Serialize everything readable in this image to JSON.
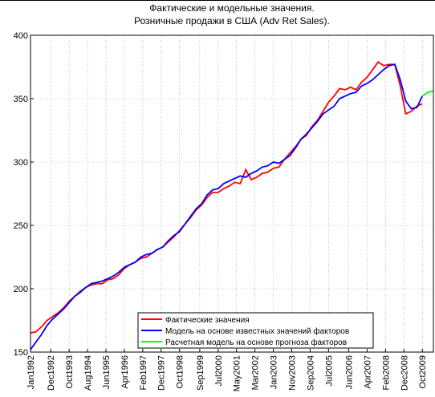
{
  "chart_data": {
    "type": "line",
    "title": [
      "Фактические и модельные значения.",
      "Розничные продажи в США (Adv Ret Sales)."
    ],
    "x": [
      "1992-01",
      "1992-04",
      "1992-07",
      "1992-10",
      "1993-01",
      "1993-04",
      "1993-07",
      "1993-10",
      "1994-01",
      "1994-04",
      "1994-07",
      "1994-10",
      "1995-01",
      "1995-04",
      "1995-07",
      "1995-10",
      "1996-01",
      "1996-04",
      "1996-07",
      "1996-10",
      "1997-01",
      "1997-04",
      "1997-07",
      "1997-10",
      "1998-01",
      "1998-04",
      "1998-07",
      "1998-10",
      "1999-01",
      "1999-04",
      "1999-07",
      "1999-10",
      "2000-01",
      "2000-04",
      "2000-07",
      "2000-10",
      "2001-01",
      "2001-04",
      "2001-07",
      "2001-10",
      "2002-01",
      "2002-04",
      "2002-07",
      "2002-10",
      "2003-01",
      "2003-04",
      "2003-07",
      "2003-10",
      "2004-01",
      "2004-04",
      "2004-07",
      "2004-10",
      "2005-01",
      "2005-04",
      "2005-07",
      "2005-10",
      "2006-01",
      "2006-04",
      "2006-07",
      "2006-10",
      "2007-01",
      "2007-04",
      "2007-07",
      "2007-10",
      "2008-01",
      "2008-04",
      "2008-07",
      "2008-10",
      "2009-01",
      "2009-04",
      "2009-07",
      "2009-10",
      "2010-01",
      "2010-04"
    ],
    "series": [
      {
        "name": "Фактические значения",
        "color": "#ff0000",
        "values": [
          165,
          166,
          170,
          175,
          178,
          181,
          185,
          190,
          194,
          198,
          201,
          203,
          204,
          204,
          207,
          208,
          211,
          216,
          219,
          221,
          224,
          225,
          228,
          231,
          233,
          237,
          241,
          246,
          251,
          256,
          262,
          266,
          272,
          276,
          276,
          279,
          281,
          284,
          283,
          294,
          286,
          288,
          291,
          292,
          295,
          296,
          302,
          307,
          312,
          318,
          321,
          328,
          333,
          340,
          347,
          352,
          358,
          357,
          359,
          357,
          363,
          367,
          373,
          379,
          376,
          377,
          377,
          360,
          338,
          340,
          344,
          346,
          null,
          null
        ]
      },
      {
        "name": "Модель на основе известных значений факторов",
        "color": "#0000ff",
        "values": [
          152,
          158,
          164,
          171,
          176,
          180,
          184,
          189,
          194,
          197,
          201,
          204,
          205,
          206,
          208,
          210,
          213,
          217,
          219,
          221,
          225,
          227,
          228,
          231,
          233,
          238,
          242,
          245,
          251,
          257,
          263,
          267,
          274,
          278,
          279,
          283,
          285,
          287,
          289,
          288,
          291,
          293,
          296,
          297,
          300,
          299,
          302,
          305,
          311,
          318,
          322,
          327,
          332,
          338,
          341,
          344,
          350,
          352,
          354,
          355,
          360,
          362,
          365,
          369,
          373,
          376,
          377,
          365,
          348,
          342,
          343,
          352,
          null,
          null
        ]
      },
      {
        "name": "Расчетная модель на основе прогноза факторов",
        "color": "#00ff00",
        "values": [
          null,
          null,
          null,
          null,
          null,
          null,
          null,
          null,
          null,
          null,
          null,
          null,
          null,
          null,
          null,
          null,
          null,
          null,
          null,
          null,
          null,
          null,
          null,
          null,
          null,
          null,
          null,
          null,
          null,
          null,
          null,
          null,
          null,
          null,
          null,
          null,
          null,
          null,
          null,
          null,
          null,
          null,
          null,
          null,
          null,
          null,
          null,
          null,
          null,
          null,
          null,
          null,
          null,
          null,
          null,
          null,
          null,
          null,
          null,
          null,
          null,
          null,
          null,
          null,
          null,
          null,
          null,
          null,
          null,
          null,
          null,
          352,
          355,
          356
        ]
      }
    ],
    "xlim": [
      "1992-01",
      "2010-04"
    ],
    "xticks": [
      {
        "value": "1992-01",
        "label": "Jan1992"
      },
      {
        "value": "1992-12",
        "label": "Dec1992"
      },
      {
        "value": "1993-10",
        "label": "Oct1993"
      },
      {
        "value": "1994-08",
        "label": "Aug1994"
      },
      {
        "value": "1995-06",
        "label": "Jun1995"
      },
      {
        "value": "1996-04",
        "label": "Apr1996"
      },
      {
        "value": "1997-02",
        "label": "Feb1997"
      },
      {
        "value": "1997-12",
        "label": "Dec1997"
      },
      {
        "value": "1998-10",
        "label": "Oct1998"
      },
      {
        "value": "1999-09",
        "label": "Sep1999"
      },
      {
        "value": "2000-07",
        "label": "Jul2000"
      },
      {
        "value": "2001-05",
        "label": "May2001"
      },
      {
        "value": "2002-03",
        "label": "Mar2002"
      },
      {
        "value": "2003-01",
        "label": "Jan2003"
      },
      {
        "value": "2003-11",
        "label": "Nov2003"
      },
      {
        "value": "2004-09",
        "label": "Sep2004"
      },
      {
        "value": "2005-07",
        "label": "Jul2005"
      },
      {
        "value": "2006-06",
        "label": "Jun2006"
      },
      {
        "value": "2007-04",
        "label": "Apr2007"
      },
      {
        "value": "2008-02",
        "label": "Feb2008"
      },
      {
        "value": "2008-12",
        "label": "Dec2008"
      },
      {
        "value": "2009-10",
        "label": "Oct2009"
      }
    ],
    "ylim": [
      150,
      400
    ],
    "yticks": [
      150,
      200,
      250,
      300,
      350,
      400
    ],
    "grid": true,
    "legend": "bottom"
  }
}
